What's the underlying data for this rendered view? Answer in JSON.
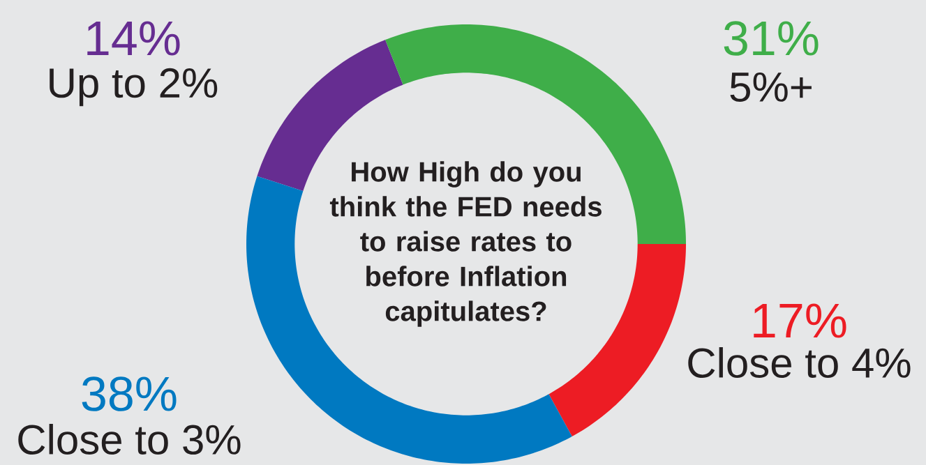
{
  "chart_data": {
    "type": "donut",
    "title": "How High do you think the FED needs to raise rates to before Inflation capitulates?",
    "categories": [
      "Up to 2%",
      "5%+",
      "Close to 4%",
      "Close to 3%"
    ],
    "values": [
      14,
      31,
      17,
      38
    ],
    "value_labels": [
      "14%",
      "31%",
      "17%",
      "38%"
    ],
    "colors": [
      "#662d91",
      "#3fae49",
      "#ed1c24",
      "#0079c1"
    ]
  }
}
